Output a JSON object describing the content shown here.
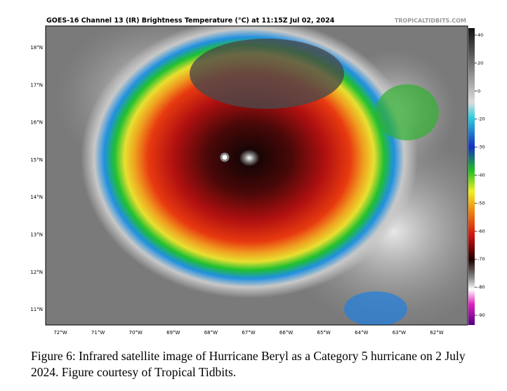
{
  "figure": {
    "title": "GOES-16 Channel 13 (IR) Brightness Temperature (°C) at 11:15Z Jul 02, 2024",
    "source": "TROPICALTIDBITS.COM",
    "lat_labels": [
      "18°N",
      "17°N",
      "16°N",
      "15°N",
      "14°N",
      "13°N",
      "12°N",
      "11°N"
    ],
    "lon_labels": [
      "72°W",
      "71°W",
      "70°W",
      "69°W",
      "68°W",
      "67°W",
      "66°W",
      "65°W",
      "64°W",
      "63°W",
      "62°W"
    ],
    "colorbar_ticks": [
      40,
      20,
      0,
      -20,
      -30,
      -40,
      -50,
      -60,
      -70,
      -80,
      -90
    ],
    "caption": "Figure 6: Infrared satellite image of Hurricane Beryl as a Category 5 hurricane on 2 July 2024. Figure courtesy of Tropical Tidbits."
  }
}
